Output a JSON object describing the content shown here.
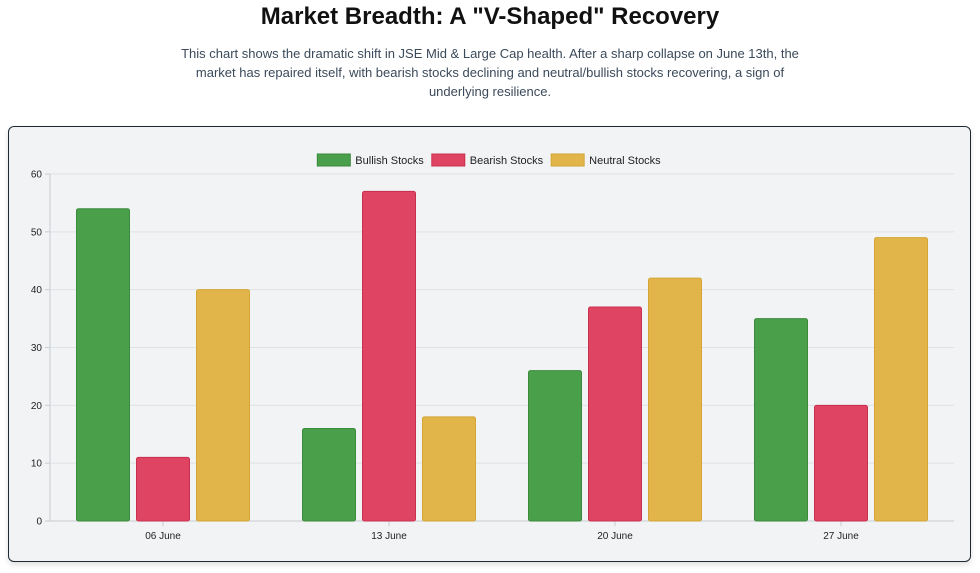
{
  "header": {
    "title": "Market Breadth: A \"V-Shaped\" Recovery",
    "subtitle": "This chart shows the dramatic shift in JSE Mid & Large Cap health. After a sharp collapse on June 13th, the market has repaired itself, with bearish stocks declining and neutral/bullish stocks recovering, a sign of underlying resilience."
  },
  "chart_data": {
    "type": "bar",
    "categories": [
      "06 June",
      "13 June",
      "20 June",
      "27 June"
    ],
    "series": [
      {
        "name": "Bullish Stocks",
        "values": [
          54,
          16,
          26,
          35
        ],
        "color": "#4aa04a",
        "border": "#3c8a3c"
      },
      {
        "name": "Bearish Stocks",
        "values": [
          11,
          57,
          37,
          20
        ],
        "color": "#e04463",
        "border": "#c8304f"
      },
      {
        "name": "Neutral Stocks",
        "values": [
          40,
          18,
          42,
          49
        ],
        "color": "#e2b54a",
        "border": "#d4a535"
      }
    ],
    "ylim": [
      0,
      60
    ],
    "yticks": [
      0,
      10,
      20,
      30,
      40,
      50,
      60
    ],
    "grid": true,
    "legend_position": "top"
  }
}
